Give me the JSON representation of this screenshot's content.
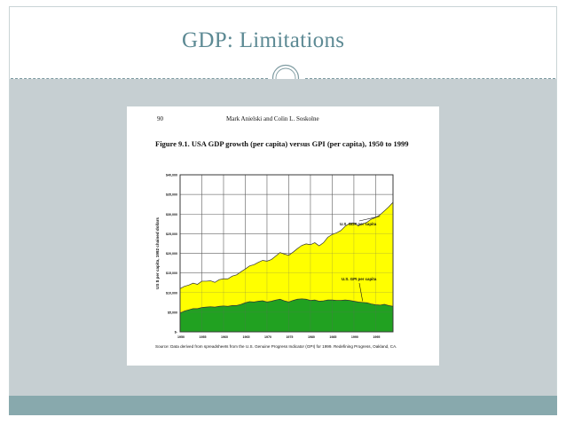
{
  "slide": {
    "title": "GDP: Limitations",
    "colors": {
      "title": "#5d8a94",
      "content_background": "#c6cfd2",
      "bottom_bar": "#88a9ad",
      "divider": "#7d9aa0"
    }
  },
  "figure": {
    "page_number": "90",
    "running_head": "Mark Anielski and Colin L. Soskolne",
    "title": "Figure 9.1. USA GDP growth (per capita) versus GPI (per capita), 1950 to 1999",
    "source_note": "Source: Data derived from spreadsheets from the U.S. Genuine Progress Indicator (GPI) for 1999. Redefining Progress, Oakland, CA."
  },
  "chart_data": {
    "type": "area",
    "title": "Figure 9.1. USA GDP growth (per capita) versus GPI (per capita), 1950 to 1999",
    "xlabel": "",
    "ylabel": "US $ per capita, 1992 chained dollars",
    "xlim": [
      1950,
      1999
    ],
    "ylim": [
      0,
      40000
    ],
    "grid": true,
    "x_ticks": [
      "1950",
      "1955",
      "1960",
      "1965",
      "1970",
      "1975",
      "1980",
      "1985",
      "1990",
      "1995"
    ],
    "x_tick_values": [
      1950,
      1955,
      1960,
      1965,
      1970,
      1975,
      1980,
      1985,
      1990,
      1995
    ],
    "y_ticks": [
      "$-",
      "$5,000",
      "$10,000",
      "$15,000",
      "$20,000",
      "$25,000",
      "$30,000",
      "$35,000",
      "$40,000"
    ],
    "y_tick_values": [
      0,
      5000,
      10000,
      15000,
      20000,
      25000,
      30000,
      35000,
      40000
    ],
    "colors": {
      "gdp_fill": "#ffff00",
      "gpi_fill": "#21a121",
      "gdp_line": "#333333",
      "gpi_line": "#333333"
    },
    "series": [
      {
        "name": "U.S. GDP per capita",
        "x": [
          1950,
          1951,
          1952,
          1953,
          1954,
          1955,
          1956,
          1957,
          1958,
          1959,
          1960,
          1961,
          1962,
          1963,
          1964,
          1965,
          1966,
          1967,
          1968,
          1969,
          1970,
          1971,
          1972,
          1973,
          1974,
          1975,
          1976,
          1977,
          1978,
          1979,
          1980,
          1981,
          1982,
          1983,
          1984,
          1985,
          1986,
          1987,
          1988,
          1989,
          1990,
          1991,
          1992,
          1993,
          1994,
          1995,
          1996,
          1997,
          1998,
          1999
        ],
        "values": [
          11000,
          11600,
          11900,
          12400,
          12100,
          12900,
          12900,
          13000,
          12600,
          13300,
          13500,
          13500,
          14200,
          14500,
          15300,
          16000,
          16800,
          17100,
          17700,
          18200,
          18000,
          18400,
          19300,
          20200,
          19800,
          19500,
          20300,
          21200,
          22000,
          22400,
          22200,
          22700,
          21900,
          22700,
          24100,
          24800,
          25200,
          25800,
          26900,
          27600,
          27700,
          27000,
          27500,
          27900,
          28700,
          29100,
          29800,
          30800,
          31800,
          33000
        ]
      },
      {
        "name": "U.S. GPI per capita",
        "x": [
          1950,
          1951,
          1952,
          1953,
          1954,
          1955,
          1956,
          1957,
          1958,
          1959,
          1960,
          1961,
          1962,
          1963,
          1964,
          1965,
          1966,
          1967,
          1968,
          1969,
          1970,
          1971,
          1972,
          1973,
          1974,
          1975,
          1976,
          1977,
          1978,
          1979,
          1980,
          1981,
          1982,
          1983,
          1984,
          1985,
          1986,
          1987,
          1988,
          1989,
          1990,
          1991,
          1992,
          1993,
          1994,
          1995,
          1996,
          1997,
          1998,
          1999
        ],
        "values": [
          4800,
          5300,
          5600,
          5900,
          5900,
          6200,
          6300,
          6400,
          6300,
          6500,
          6600,
          6500,
          6700,
          6700,
          7000,
          7400,
          7700,
          7600,
          7800,
          7900,
          7600,
          7800,
          8100,
          8300,
          7900,
          7600,
          8000,
          8300,
          8400,
          8300,
          8000,
          8100,
          7800,
          7900,
          8100,
          8100,
          8000,
          8000,
          8100,
          8000,
          7800,
          7600,
          7500,
          7400,
          7100,
          6900,
          6800,
          7000,
          6700,
          6500
        ]
      }
    ],
    "annotations": [
      "U.S. GDP per capita",
      "U.S. GPI per capita"
    ]
  }
}
